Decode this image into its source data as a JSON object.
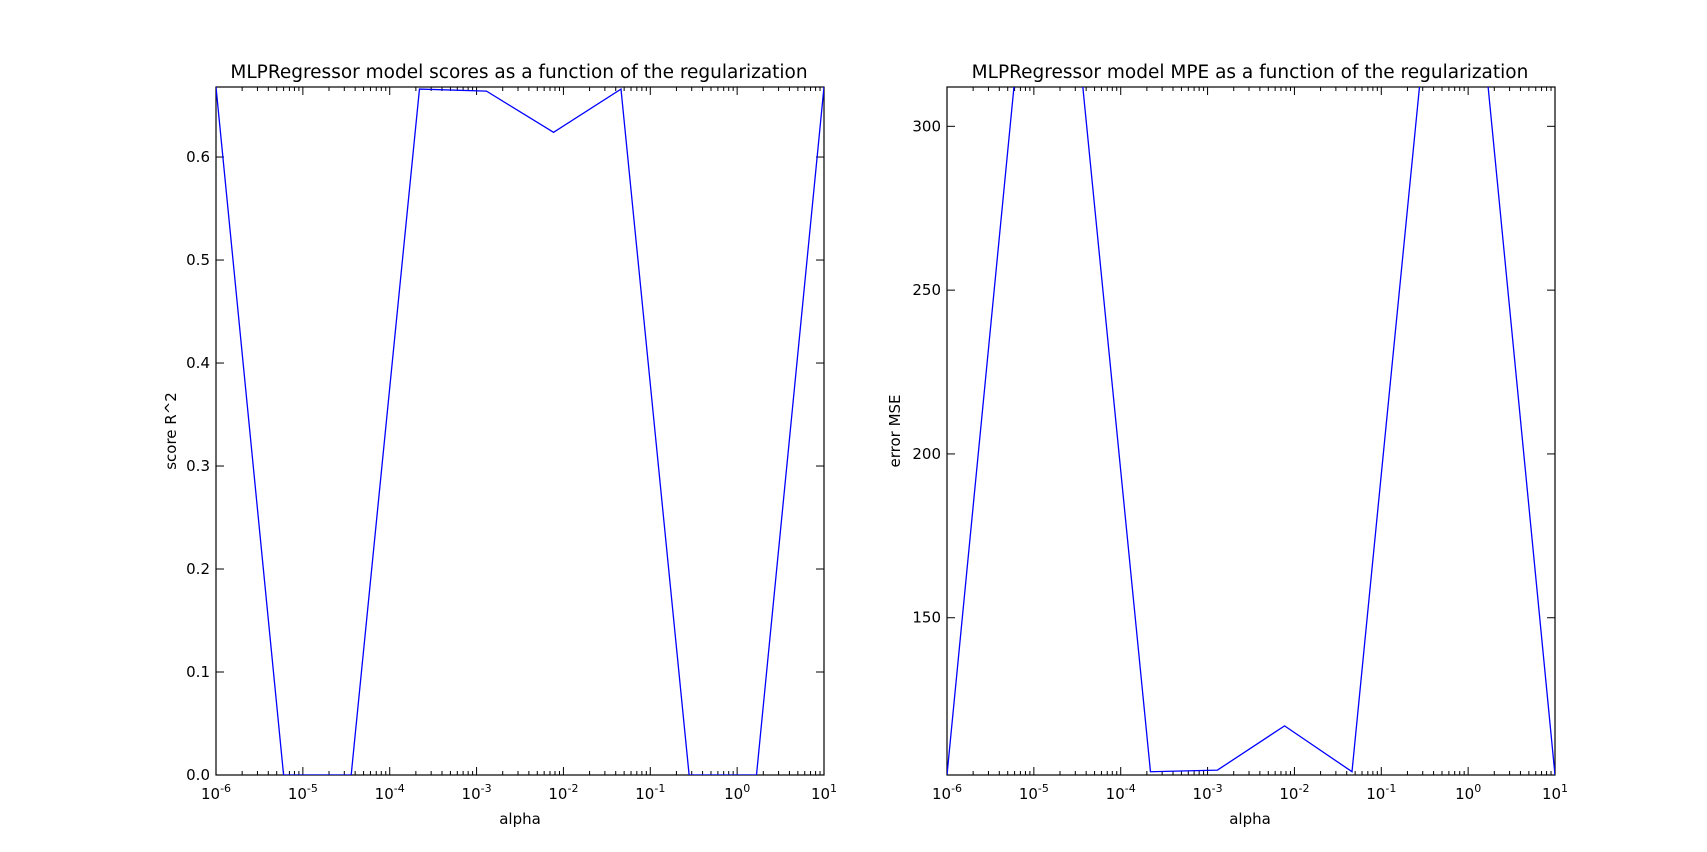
{
  "chart_data": [
    {
      "type": "line",
      "title": "MLPRegressor model scores as a function of the regularization",
      "xlabel": "alpha",
      "ylabel": "score R^2",
      "xscale": "log",
      "xlim": [
        1e-06,
        10
      ],
      "ylim": [
        0.0,
        0.668
      ],
      "grid": false,
      "color": "#0000ff",
      "x_ticks": [
        {
          "base": "10",
          "exp": "-6"
        },
        {
          "base": "10",
          "exp": "-5"
        },
        {
          "base": "10",
          "exp": "-4"
        },
        {
          "base": "10",
          "exp": "-3"
        },
        {
          "base": "10",
          "exp": "-2"
        },
        {
          "base": "10",
          "exp": "-1"
        },
        {
          "base": "10",
          "exp": "0"
        },
        {
          "base": "10",
          "exp": "1"
        }
      ],
      "y_ticks": [
        "0.0",
        "0.1",
        "0.2",
        "0.3",
        "0.4",
        "0.5",
        "0.6"
      ],
      "x": [
        1e-06,
        6e-06,
        3.6e-05,
        0.00022,
        0.0013,
        0.0077,
        0.046,
        0.28,
        1.67,
        10
      ],
      "y": [
        0.668,
        0.0,
        0.0,
        0.666,
        0.664,
        0.624,
        0.666,
        0.0,
        0.0,
        0.668
      ]
    },
    {
      "type": "line",
      "title": "MLPRegressor model MPE as a function of the regularization",
      "xlabel": "alpha",
      "ylabel": "error MSE",
      "xscale": "log",
      "xlim": [
        1e-06,
        10
      ],
      "ylim": [
        102,
        312
      ],
      "grid": false,
      "color": "#0000ff",
      "x_ticks": [
        {
          "base": "10",
          "exp": "-6"
        },
        {
          "base": "10",
          "exp": "-5"
        },
        {
          "base": "10",
          "exp": "-4"
        },
        {
          "base": "10",
          "exp": "-3"
        },
        {
          "base": "10",
          "exp": "-2"
        },
        {
          "base": "10",
          "exp": "-1"
        },
        {
          "base": "10",
          "exp": "0"
        },
        {
          "base": "10",
          "exp": "1"
        }
      ],
      "y_ticks": [
        "150",
        "200",
        "250",
        "300"
      ],
      "x": [
        1e-06,
        6e-06,
        3.6e-05,
        0.00022,
        0.0013,
        0.0077,
        0.046,
        0.28,
        1.67,
        10
      ],
      "y": [
        102,
        314,
        314,
        103,
        103.5,
        117,
        103,
        314,
        314,
        102
      ]
    }
  ]
}
